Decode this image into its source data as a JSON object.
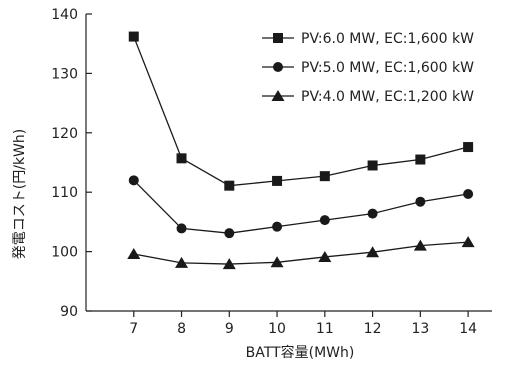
{
  "chart_data": {
    "type": "line",
    "title": "",
    "xlabel": "BATT容量(MWh)",
    "ylabel": "発電コスト(円/kWh)",
    "x": [
      7,
      8,
      9,
      10,
      11,
      12,
      13,
      14
    ],
    "xlim": [
      6,
      14.5
    ],
    "ylim": [
      90,
      140
    ],
    "yticks": [
      90,
      100,
      110,
      120,
      130,
      140
    ],
    "grid": false,
    "legend_position": "top-right",
    "series": [
      {
        "name": "PV:6.0 MW, EC:1,600 kW",
        "marker": "square",
        "color": "#1a1a1a",
        "values": [
          136.2,
          115.7,
          111.1,
          111.9,
          112.7,
          114.5,
          115.5,
          117.6
        ]
      },
      {
        "name": "PV:5.0 MW, EC:1,600 kW",
        "marker": "circle",
        "color": "#1a1a1a",
        "values": [
          112.0,
          103.9,
          103.1,
          104.2,
          105.3,
          106.4,
          108.4,
          109.7
        ]
      },
      {
        "name": "PV:4.0 MW, EC:1,200 kW",
        "marker": "triangle",
        "color": "#1a1a1a",
        "values": [
          99.6,
          98.1,
          97.9,
          98.2,
          99.1,
          99.9,
          101.0,
          101.6
        ]
      }
    ]
  }
}
